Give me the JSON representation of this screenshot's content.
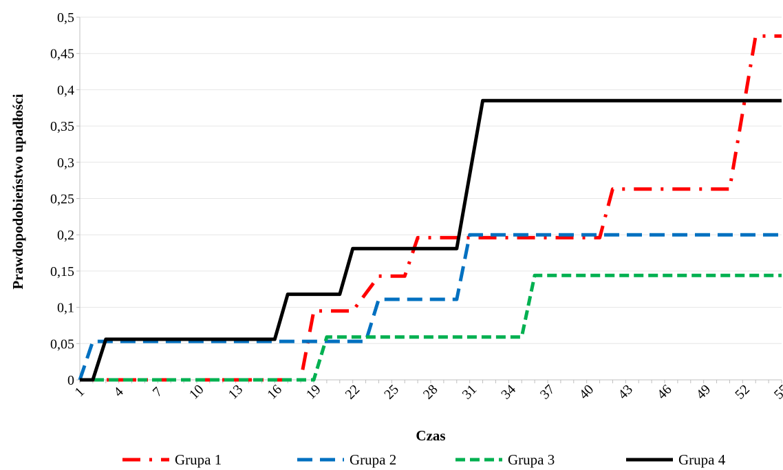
{
  "chart_data": {
    "type": "line",
    "xlabel": "Czas",
    "ylabel": "Prawdopodobieństwo upadłości",
    "ylim": [
      0,
      0.5
    ],
    "yticks": [
      "0",
      "0,05",
      "0,1",
      "0,15",
      "0,2",
      "0,25",
      "0,3",
      "0,35",
      "0,4",
      "0,45",
      "0,5"
    ],
    "xlim": [
      1,
      55
    ],
    "xticks": [
      1,
      4,
      7,
      10,
      13,
      16,
      19,
      22,
      25,
      28,
      31,
      34,
      37,
      40,
      43,
      46,
      49,
      52,
      55
    ],
    "grid": "horizontal",
    "legend_position": "bottom",
    "series": [
      {
        "name": "Grupa 1",
        "color": "#ff0000",
        "style": "dash-dot",
        "points": [
          [
            1,
            0
          ],
          [
            18,
            0
          ],
          [
            19,
            0.095
          ],
          [
            22,
            0.095
          ],
          [
            24,
            0.143
          ],
          [
            26,
            0.143
          ],
          [
            27,
            0.196
          ],
          [
            41,
            0.196
          ],
          [
            42,
            0.263
          ],
          [
            51,
            0.263
          ],
          [
            53,
            0.474
          ],
          [
            55,
            0.474
          ]
        ]
      },
      {
        "name": "Grupa 2",
        "color": "#0070c0",
        "style": "dash",
        "points": [
          [
            1,
            0
          ],
          [
            2,
            0.053
          ],
          [
            23,
            0.053
          ],
          [
            24,
            0.111
          ],
          [
            30,
            0.111
          ],
          [
            31,
            0.2
          ],
          [
            55,
            0.2
          ]
        ]
      },
      {
        "name": "Grupa 3",
        "color": "#00b050",
        "style": "short-dash",
        "points": [
          [
            1,
            0
          ],
          [
            19,
            0
          ],
          [
            20,
            0.059
          ],
          [
            35,
            0.059
          ],
          [
            36,
            0.144
          ],
          [
            55,
            0.144
          ]
        ]
      },
      {
        "name": "Grupa 4",
        "color": "#000000",
        "style": "solid",
        "points": [
          [
            1,
            0
          ],
          [
            2,
            0
          ],
          [
            3,
            0.056
          ],
          [
            16,
            0.056
          ],
          [
            17,
            0.118
          ],
          [
            21,
            0.118
          ],
          [
            22,
            0.181
          ],
          [
            30,
            0.181
          ],
          [
            32,
            0.385
          ],
          [
            55,
            0.385
          ]
        ]
      }
    ]
  }
}
